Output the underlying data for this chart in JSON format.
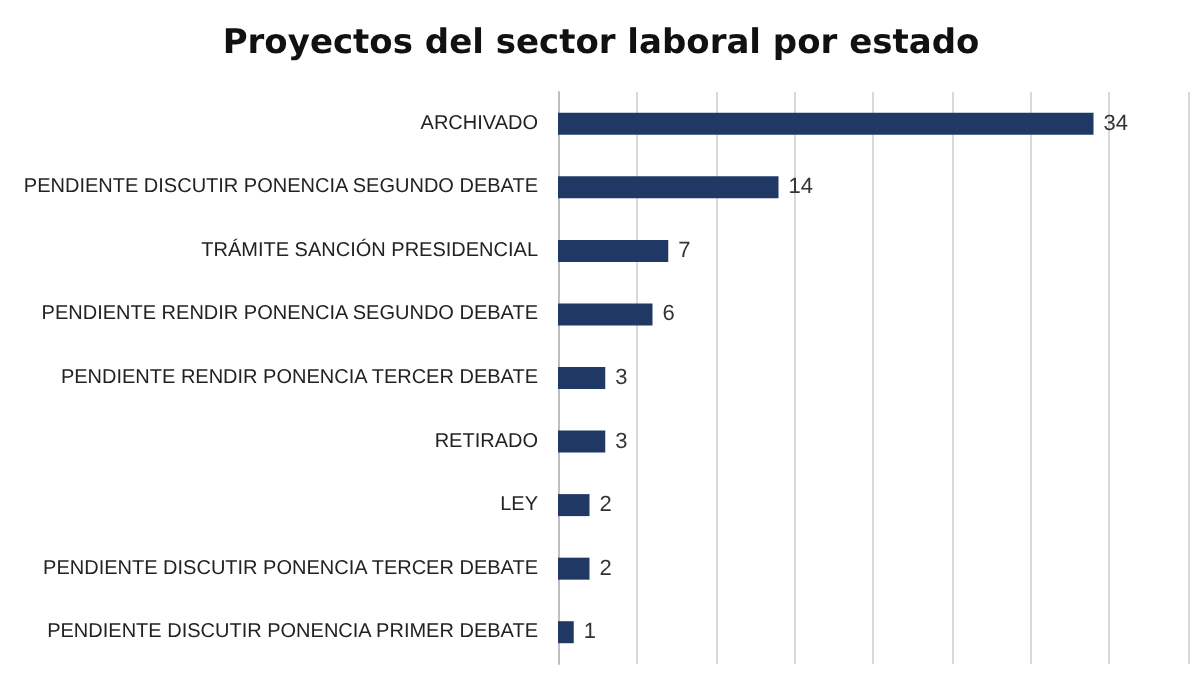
{
  "chart_data": {
    "type": "bar",
    "orientation": "horizontal",
    "title": "Proyectos del sector laboral por estado",
    "categories": [
      "ARCHIVADO",
      "PENDIENTE DISCUTIR PONENCIA SEGUNDO DEBATE",
      "TRÁMITE SANCIÓN PRESIDENCIAL",
      "PENDIENTE RENDIR PONENCIA SEGUNDO DEBATE",
      "PENDIENTE RENDIR PONENCIA TERCER DEBATE",
      "RETIRADO",
      "LEY",
      "PENDIENTE DISCUTIR PONENCIA TERCER DEBATE",
      "PENDIENTE DISCUTIR PONENCIA PRIMER DEBATE"
    ],
    "values": [
      34,
      14,
      7,
      6,
      3,
      3,
      2,
      2,
      1
    ],
    "color": "#1f3864",
    "xlim": [
      0,
      40
    ],
    "xticks": [
      {
        "value": 0,
        "label": null
      },
      {
        "value": 5,
        "label": null
      },
      {
        "value": 10,
        "label": null
      },
      {
        "value": 15,
        "label": null
      },
      {
        "value": 20,
        "label": null
      },
      {
        "value": 25,
        "label": null
      },
      {
        "value": 30,
        "label": null
      },
      {
        "value": 35,
        "label": null
      },
      {
        "value": 40,
        "label": null
      }
    ],
    "tick_labels": "y",
    "grid": "x",
    "data_labels": true
  }
}
